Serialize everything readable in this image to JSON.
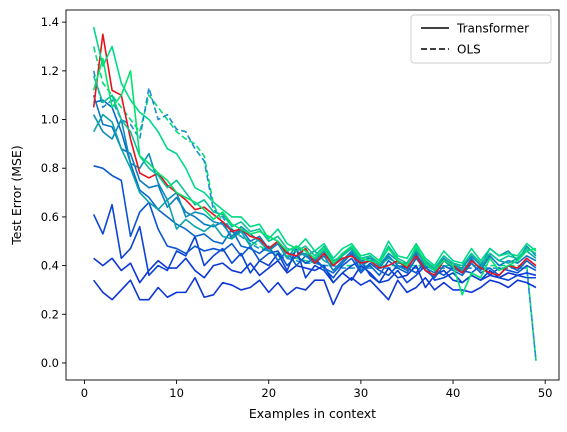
{
  "chart_data": {
    "type": "line",
    "xlabel": "Examples in context",
    "ylabel": "Test Error (MSE)",
    "xlim": [
      -2,
      51.5
    ],
    "ylim": [
      -0.07,
      1.45
    ],
    "xticks": [
      0,
      10,
      20,
      30,
      40,
      50
    ],
    "yticks": [
      0.0,
      0.2,
      0.4,
      0.6,
      0.8,
      1.0,
      1.2,
      1.4
    ],
    "legend": {
      "position": "top-right",
      "entries": [
        {
          "label": "Transformer",
          "style": "solid"
        },
        {
          "label": "OLS",
          "style": "dashed"
        }
      ]
    },
    "series": [
      {
        "color": "#00dd77",
        "style": "dashed",
        "values": [
          1.3,
          1.15,
          1.1,
          1.05,
          1.0,
          0.95,
          1.1,
          1.05,
          1.0,
          0.95,
          0.92,
          0.9,
          0.85,
          0.65,
          0.58,
          0.55,
          0.52,
          0.5,
          0.48,
          0.46,
          0.45,
          0.44,
          0.43,
          0.42,
          0.41,
          0.4,
          0.4,
          0.4,
          0.4,
          0.4,
          0.4,
          0.4,
          0.4,
          0.4,
          0.4,
          0.4,
          0.4,
          0.4,
          0.4,
          0.4,
          0.4,
          0.4,
          0.4,
          0.4,
          0.4,
          0.4,
          0.4,
          0.4,
          0.01
        ]
      },
      {
        "color": "#1a8fd0",
        "style": "dashed",
        "values": [
          1.2,
          1.05,
          1.08,
          1.0,
          0.98,
          0.92,
          1.13,
          1.0,
          1.02,
          0.96,
          0.95,
          0.88,
          0.83,
          0.63,
          0.6,
          0.54,
          0.52,
          0.49,
          0.47,
          0.46,
          0.44,
          0.43,
          0.42,
          0.41,
          0.41,
          0.4,
          0.4,
          0.39,
          0.39,
          0.39,
          0.39,
          0.39,
          0.39,
          0.39,
          0.39,
          0.39,
          0.39,
          0.39,
          0.39,
          0.39,
          0.39,
          0.39,
          0.39,
          0.39,
          0.39,
          0.39,
          0.39,
          0.39,
          0.01
        ]
      },
      {
        "color": "#0c36d8",
        "style": "solid",
        "values": [
          0.34,
          0.29,
          0.26,
          0.3,
          0.34,
          0.26,
          0.26,
          0.31,
          0.27,
          0.29,
          0.29,
          0.35,
          0.27,
          0.28,
          0.33,
          0.32,
          0.3,
          0.31,
          0.34,
          0.29,
          0.33,
          0.28,
          0.31,
          0.3,
          0.34,
          0.34,
          0.24,
          0.32,
          0.35,
          0.32,
          0.34,
          0.3,
          0.26,
          0.34,
          0.29,
          0.31,
          0.35,
          0.3,
          0.33,
          0.3,
          0.3,
          0.29,
          0.31,
          0.34,
          0.33,
          0.31,
          0.34,
          0.33,
          0.31
        ]
      },
      {
        "color": "#0c36d8",
        "style": "solid",
        "values": [
          0.43,
          0.4,
          0.43,
          0.38,
          0.41,
          0.33,
          0.38,
          0.42,
          0.39,
          0.39,
          0.43,
          0.38,
          0.35,
          0.4,
          0.41,
          0.38,
          0.37,
          0.41,
          0.36,
          0.39,
          0.42,
          0.37,
          0.4,
          0.39,
          0.38,
          0.4,
          0.33,
          0.37,
          0.34,
          0.4,
          0.37,
          0.33,
          0.39,
          0.35,
          0.36,
          0.4,
          0.31,
          0.36,
          0.38,
          0.34,
          0.33,
          0.36,
          0.34,
          0.36,
          0.35,
          0.37,
          0.36,
          0.37,
          0.36
        ]
      },
      {
        "color": "#0b44d4",
        "style": "solid",
        "values": [
          0.61,
          0.53,
          0.65,
          0.43,
          0.47,
          0.56,
          0.36,
          0.4,
          0.38,
          0.46,
          0.44,
          0.52,
          0.4,
          0.44,
          0.47,
          0.41,
          0.45,
          0.37,
          0.42,
          0.4,
          0.45,
          0.38,
          0.47,
          0.35,
          0.4,
          0.38,
          0.33,
          0.37,
          0.4,
          0.42,
          0.36,
          0.33,
          0.34,
          0.38,
          0.33,
          0.36,
          0.4,
          0.34,
          0.35,
          0.37,
          0.33,
          0.36,
          0.34,
          0.38,
          0.35,
          0.34,
          0.36,
          0.35,
          0.35
        ]
      },
      {
        "color": "#0a55d0",
        "style": "solid",
        "values": [
          0.81,
          0.8,
          0.77,
          0.75,
          0.52,
          0.62,
          0.66,
          0.55,
          0.48,
          0.47,
          0.45,
          0.48,
          0.46,
          0.47,
          0.46,
          0.49,
          0.44,
          0.48,
          0.42,
          0.45,
          0.46,
          0.4,
          0.44,
          0.41,
          0.43,
          0.39,
          0.35,
          0.4,
          0.43,
          0.37,
          0.41,
          0.38,
          0.36,
          0.4,
          0.39,
          0.37,
          0.42,
          0.38,
          0.36,
          0.39,
          0.38,
          0.37,
          0.4,
          0.36,
          0.39,
          0.38,
          0.37,
          0.4,
          0.38
        ]
      },
      {
        "color": "#0a66cc",
        "style": "solid",
        "values": [
          1.07,
          1.08,
          1.05,
          0.95,
          0.82,
          0.71,
          0.68,
          0.63,
          0.6,
          0.57,
          0.55,
          0.52,
          0.53,
          0.5,
          0.49,
          0.55,
          0.48,
          0.47,
          0.45,
          0.48,
          0.42,
          0.46,
          0.4,
          0.44,
          0.42,
          0.39,
          0.37,
          0.41,
          0.45,
          0.38,
          0.4,
          0.36,
          0.42,
          0.39,
          0.37,
          0.43,
          0.38,
          0.35,
          0.4,
          0.38,
          0.36,
          0.41,
          0.37,
          0.39,
          0.36,
          0.4,
          0.38,
          0.42,
          0.39
        ]
      },
      {
        "color": "#0b7ac4",
        "style": "solid",
        "values": [
          1.1,
          0.98,
          0.97,
          0.88,
          0.86,
          0.75,
          0.72,
          0.73,
          0.64,
          0.68,
          0.62,
          0.6,
          0.57,
          0.56,
          0.58,
          0.51,
          0.55,
          0.5,
          0.52,
          0.47,
          0.49,
          0.43,
          0.46,
          0.44,
          0.41,
          0.44,
          0.38,
          0.42,
          0.46,
          0.4,
          0.42,
          0.39,
          0.44,
          0.4,
          0.38,
          0.45,
          0.39,
          0.37,
          0.42,
          0.39,
          0.37,
          0.43,
          0.38,
          0.44,
          0.4,
          0.42,
          0.41,
          0.44,
          0.42
        ]
      },
      {
        "color": "#0a8fb8",
        "style": "solid",
        "values": [
          1.02,
          0.95,
          0.92,
          1.0,
          0.82,
          0.8,
          0.86,
          0.74,
          0.67,
          0.7,
          0.6,
          0.62,
          0.61,
          0.58,
          0.57,
          0.52,
          0.56,
          0.53,
          0.5,
          0.46,
          0.49,
          0.45,
          0.44,
          0.45,
          0.42,
          0.46,
          0.4,
          0.44,
          0.48,
          0.42,
          0.43,
          0.4,
          0.45,
          0.42,
          0.4,
          0.46,
          0.41,
          0.39,
          0.43,
          0.4,
          0.39,
          0.44,
          0.4,
          0.47,
          0.44,
          0.46,
          0.42,
          0.48,
          0.44
        ]
      },
      {
        "color": "#0aa5a8",
        "style": "solid",
        "values": [
          0.95,
          1.02,
          0.99,
          0.88,
          0.8,
          0.7,
          0.66,
          0.63,
          0.67,
          0.55,
          0.59,
          0.56,
          0.54,
          0.57,
          0.52,
          0.51,
          0.54,
          0.48,
          0.51,
          0.47,
          0.5,
          0.43,
          0.48,
          0.44,
          0.46,
          0.42,
          0.4,
          0.45,
          0.47,
          0.41,
          0.44,
          0.4,
          0.43,
          0.41,
          0.41,
          0.47,
          0.4,
          0.38,
          0.42,
          0.41,
          0.38,
          0.42,
          0.39,
          0.45,
          0.42,
          0.41,
          0.43,
          0.46,
          0.43
        ]
      },
      {
        "color": "#e8121e",
        "style": "solid",
        "values": [
          1.05,
          1.35,
          1.12,
          1.1,
          0.92,
          0.78,
          0.76,
          0.78,
          0.73,
          0.7,
          0.67,
          0.63,
          0.64,
          0.61,
          0.58,
          0.54,
          0.55,
          0.52,
          0.51,
          0.47,
          0.5,
          0.45,
          0.44,
          0.47,
          0.41,
          0.45,
          0.4,
          0.43,
          0.44,
          0.41,
          0.42,
          0.39,
          0.4,
          0.42,
          0.39,
          0.44,
          0.38,
          0.36,
          0.42,
          0.4,
          0.37,
          0.42,
          0.39,
          0.37,
          0.36,
          0.4,
          0.39,
          0.43,
          0.4
        ]
      },
      {
        "color": "#0cc19a",
        "style": "solid",
        "values": [
          1.18,
          1.07,
          1.1,
          1.0,
          0.95,
          0.85,
          0.8,
          0.77,
          0.72,
          0.75,
          0.7,
          0.65,
          0.67,
          0.62,
          0.61,
          0.56,
          0.58,
          0.54,
          0.55,
          0.5,
          0.52,
          0.47,
          0.46,
          0.48,
          0.44,
          0.48,
          0.42,
          0.44,
          0.47,
          0.43,
          0.44,
          0.41,
          0.48,
          0.43,
          0.41,
          0.47,
          0.42,
          0.39,
          0.44,
          0.41,
          0.4,
          0.45,
          0.41,
          0.45,
          0.42,
          0.44,
          0.43,
          0.47,
          0.45
        ]
      },
      {
        "color": "#00d988",
        "style": "solid",
        "values": [
          1.38,
          1.22,
          1.3,
          1.15,
          1.08,
          1.03,
          1.0,
          0.95,
          0.88,
          0.86,
          0.8,
          0.72,
          0.7,
          0.66,
          0.63,
          0.6,
          0.6,
          0.56,
          0.57,
          0.51,
          0.55,
          0.49,
          0.47,
          0.51,
          0.46,
          0.49,
          0.43,
          0.47,
          0.49,
          0.44,
          0.45,
          0.42,
          0.5,
          0.44,
          0.43,
          0.49,
          0.43,
          0.4,
          0.46,
          0.42,
          0.41,
          0.47,
          0.42,
          0.47,
          0.44,
          0.45,
          0.44,
          0.49,
          0.46
        ]
      },
      {
        "color": "#00e36f",
        "style": "solid",
        "values": [
          1.12,
          1.25,
          1.05,
          1.1,
          1.2,
          0.85,
          0.82,
          0.78,
          0.75,
          0.7,
          0.68,
          0.66,
          0.63,
          0.59,
          0.62,
          0.57,
          0.55,
          0.53,
          0.54,
          0.52,
          0.5,
          0.46,
          0.48,
          0.46,
          0.43,
          0.47,
          0.41,
          0.45,
          0.48,
          0.43,
          0.42,
          0.41,
          0.47,
          0.42,
          0.4,
          0.48,
          0.41,
          0.38,
          0.42,
          0.4,
          0.28,
          0.37,
          0.35,
          0.43,
          0.38,
          0.4,
          0.42,
          0.46,
          0.47
        ]
      }
    ]
  }
}
